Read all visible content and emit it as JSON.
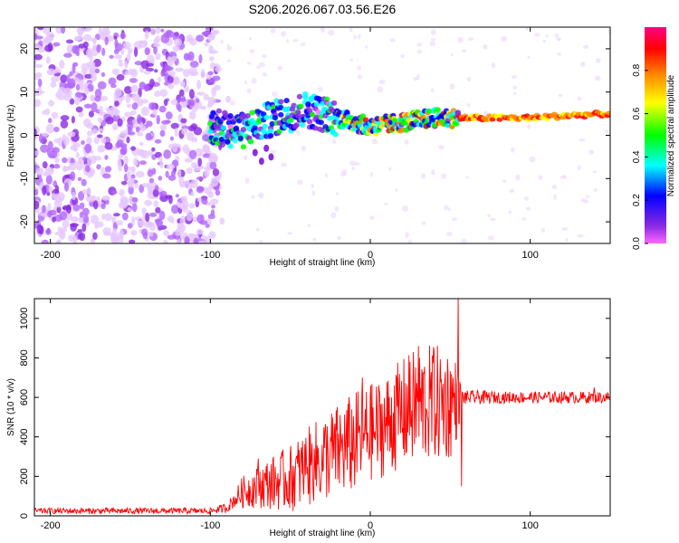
{
  "title": "S206.2026.067.03.56.E26",
  "chart_data": [
    {
      "type": "heatmap",
      "xlabel": "Height of straight line (km)",
      "ylabel": "Frequency (Hz)",
      "xlim": [
        -210,
        150
      ],
      "ylim": [
        -25,
        25
      ],
      "xticks": [
        -200,
        -100,
        0,
        100
      ],
      "yticks": [
        -20,
        -10,
        0,
        10,
        20
      ],
      "colorbar": {
        "label": "Normalized spectral amplitude",
        "range": [
          0,
          1
        ],
        "ticks": [
          "0.0",
          "0.2",
          "0.4",
          "0.6",
          "0.8"
        ],
        "tick_values": [
          0.0,
          0.2,
          0.4,
          0.6,
          0.8
        ],
        "colors": [
          "#ff66ff",
          "#8a2be2",
          "#0000ff",
          "#00ffff",
          "#00ff00",
          "#ffff00",
          "#ff8800",
          "#ff0000",
          "#ff0088"
        ]
      },
      "ridge": {
        "description_points_x": [
          -100,
          -80,
          -60,
          -40,
          -20,
          0,
          20,
          40,
          60,
          80,
          100,
          120,
          150
        ],
        "frequency_hz": [
          2,
          1,
          4,
          6,
          4,
          2,
          3,
          4,
          4,
          4,
          4,
          4.5,
          5
        ],
        "noise_region_x": [
          -210,
          -95
        ]
      }
    },
    {
      "type": "line",
      "xlabel": "Height of straight line (km)",
      "ylabel": "SNR (10 * v/v)",
      "xlim": [
        -210,
        150
      ],
      "ylim": [
        0,
        1100
      ],
      "xticks": [
        -200,
        -100,
        0,
        100
      ],
      "yticks": [
        0,
        200,
        400,
        600,
        800,
        1000
      ],
      "color": "#ff0000",
      "series": [
        {
          "name": "SNR",
          "x": [
            -210,
            -180,
            -150,
            -120,
            -100,
            -90,
            -85,
            -80,
            -70,
            -60,
            -50,
            -40,
            -30,
            -20,
            -10,
            -5,
            0,
            10,
            20,
            30,
            40,
            50,
            55,
            57,
            60,
            70,
            80,
            90,
            100,
            110,
            120,
            130,
            140,
            150
          ],
          "center": [
            25,
            25,
            25,
            25,
            25,
            40,
            80,
            120,
            150,
            170,
            190,
            240,
            290,
            330,
            370,
            400,
            420,
            460,
            520,
            560,
            570,
            570,
            590,
            600,
            600,
            600,
            600,
            600,
            600,
            600,
            600,
            600,
            600,
            600
          ],
          "amplitude": [
            15,
            15,
            15,
            15,
            15,
            25,
            40,
            80,
            110,
            140,
            170,
            200,
            220,
            240,
            260,
            250,
            250,
            260,
            280,
            300,
            300,
            290,
            180,
            40,
            35,
            35,
            30,
            30,
            30,
            30,
            30,
            30,
            30,
            30
          ],
          "peaks": [
            [
              -70,
              290
            ],
            [
              -40,
              280
            ],
            [
              -35,
              340
            ],
            [
              -30,
              360
            ],
            [
              -5,
              700
            ],
            [
              0,
              610
            ],
            [
              15,
              660
            ],
            [
              25,
              780
            ],
            [
              30,
              860
            ],
            [
              40,
              830
            ],
            [
              55,
              1110
            ],
            [
              57,
              150
            ],
            [
              140,
              650
            ]
          ]
        }
      ]
    }
  ]
}
